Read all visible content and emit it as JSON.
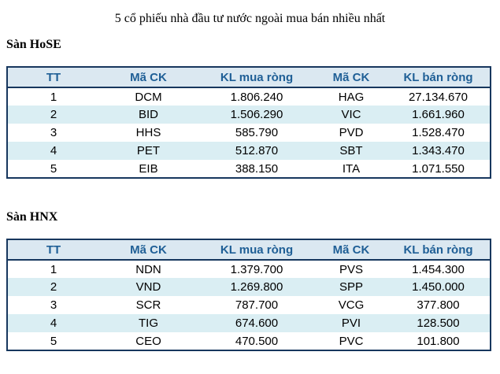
{
  "page": {
    "title": "5 cổ phiếu nhà đầu tư nước ngoài mua bán nhiều nhất"
  },
  "colors": {
    "border": "#17375e",
    "header_bg": "#dbe8f1",
    "header_text": "#1f5f96",
    "row_alt_bg": "#daeef3",
    "body_text": "#000000",
    "page_bg": "#ffffff"
  },
  "columns": [
    "TT",
    "Mã CK",
    "KL mua ròng",
    "Mã CK",
    "KL bán ròng"
  ],
  "sections": [
    {
      "label": "Sàn HoSE",
      "rows": [
        [
          "1",
          "DCM",
          "1.806.240",
          "HAG",
          "27.134.670"
        ],
        [
          "2",
          "BID",
          "1.506.290",
          "VIC",
          "1.661.960"
        ],
        [
          "3",
          "HHS",
          "585.790",
          "PVD",
          "1.528.470"
        ],
        [
          "4",
          "PET",
          "512.870",
          "SBT",
          "1.343.470"
        ],
        [
          "5",
          "EIB",
          "388.150",
          "ITA",
          "1.071.550"
        ]
      ]
    },
    {
      "label": "Sàn HNX",
      "rows": [
        [
          "1",
          "NDN",
          "1.379.700",
          "PVS",
          "1.454.300"
        ],
        [
          "2",
          "VND",
          "1.269.800",
          "SPP",
          "1.450.000"
        ],
        [
          "3",
          "SCR",
          "787.700",
          "VCG",
          "377.800"
        ],
        [
          "4",
          "TIG",
          "674.600",
          "PVI",
          "128.500"
        ],
        [
          "5",
          "CEO",
          "470.500",
          "PVC",
          "101.800"
        ]
      ]
    }
  ]
}
